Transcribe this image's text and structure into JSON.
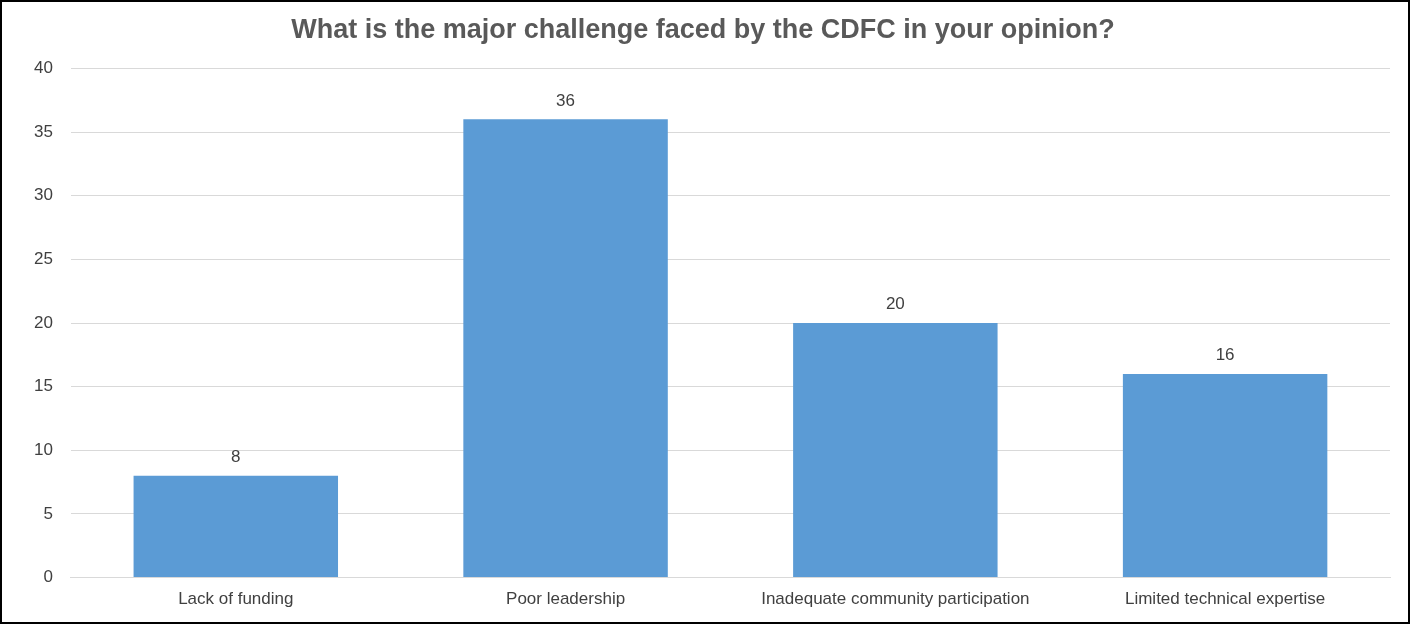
{
  "chart_data": {
    "type": "bar",
    "title": "What is the major challenge faced by the CDFC in your opinion?",
    "categories": [
      "Lack of funding",
      "Poor leadership",
      "Inadequate community participation",
      "Limited technical expertise"
    ],
    "values": [
      8,
      36,
      20,
      16
    ],
    "color": "#5b9bd5",
    "ylim": [
      0,
      40
    ],
    "yticks": [
      0,
      5,
      10,
      15,
      20,
      25,
      30,
      35,
      40
    ],
    "grid": "y",
    "data_labels": true,
    "legend": false
  }
}
